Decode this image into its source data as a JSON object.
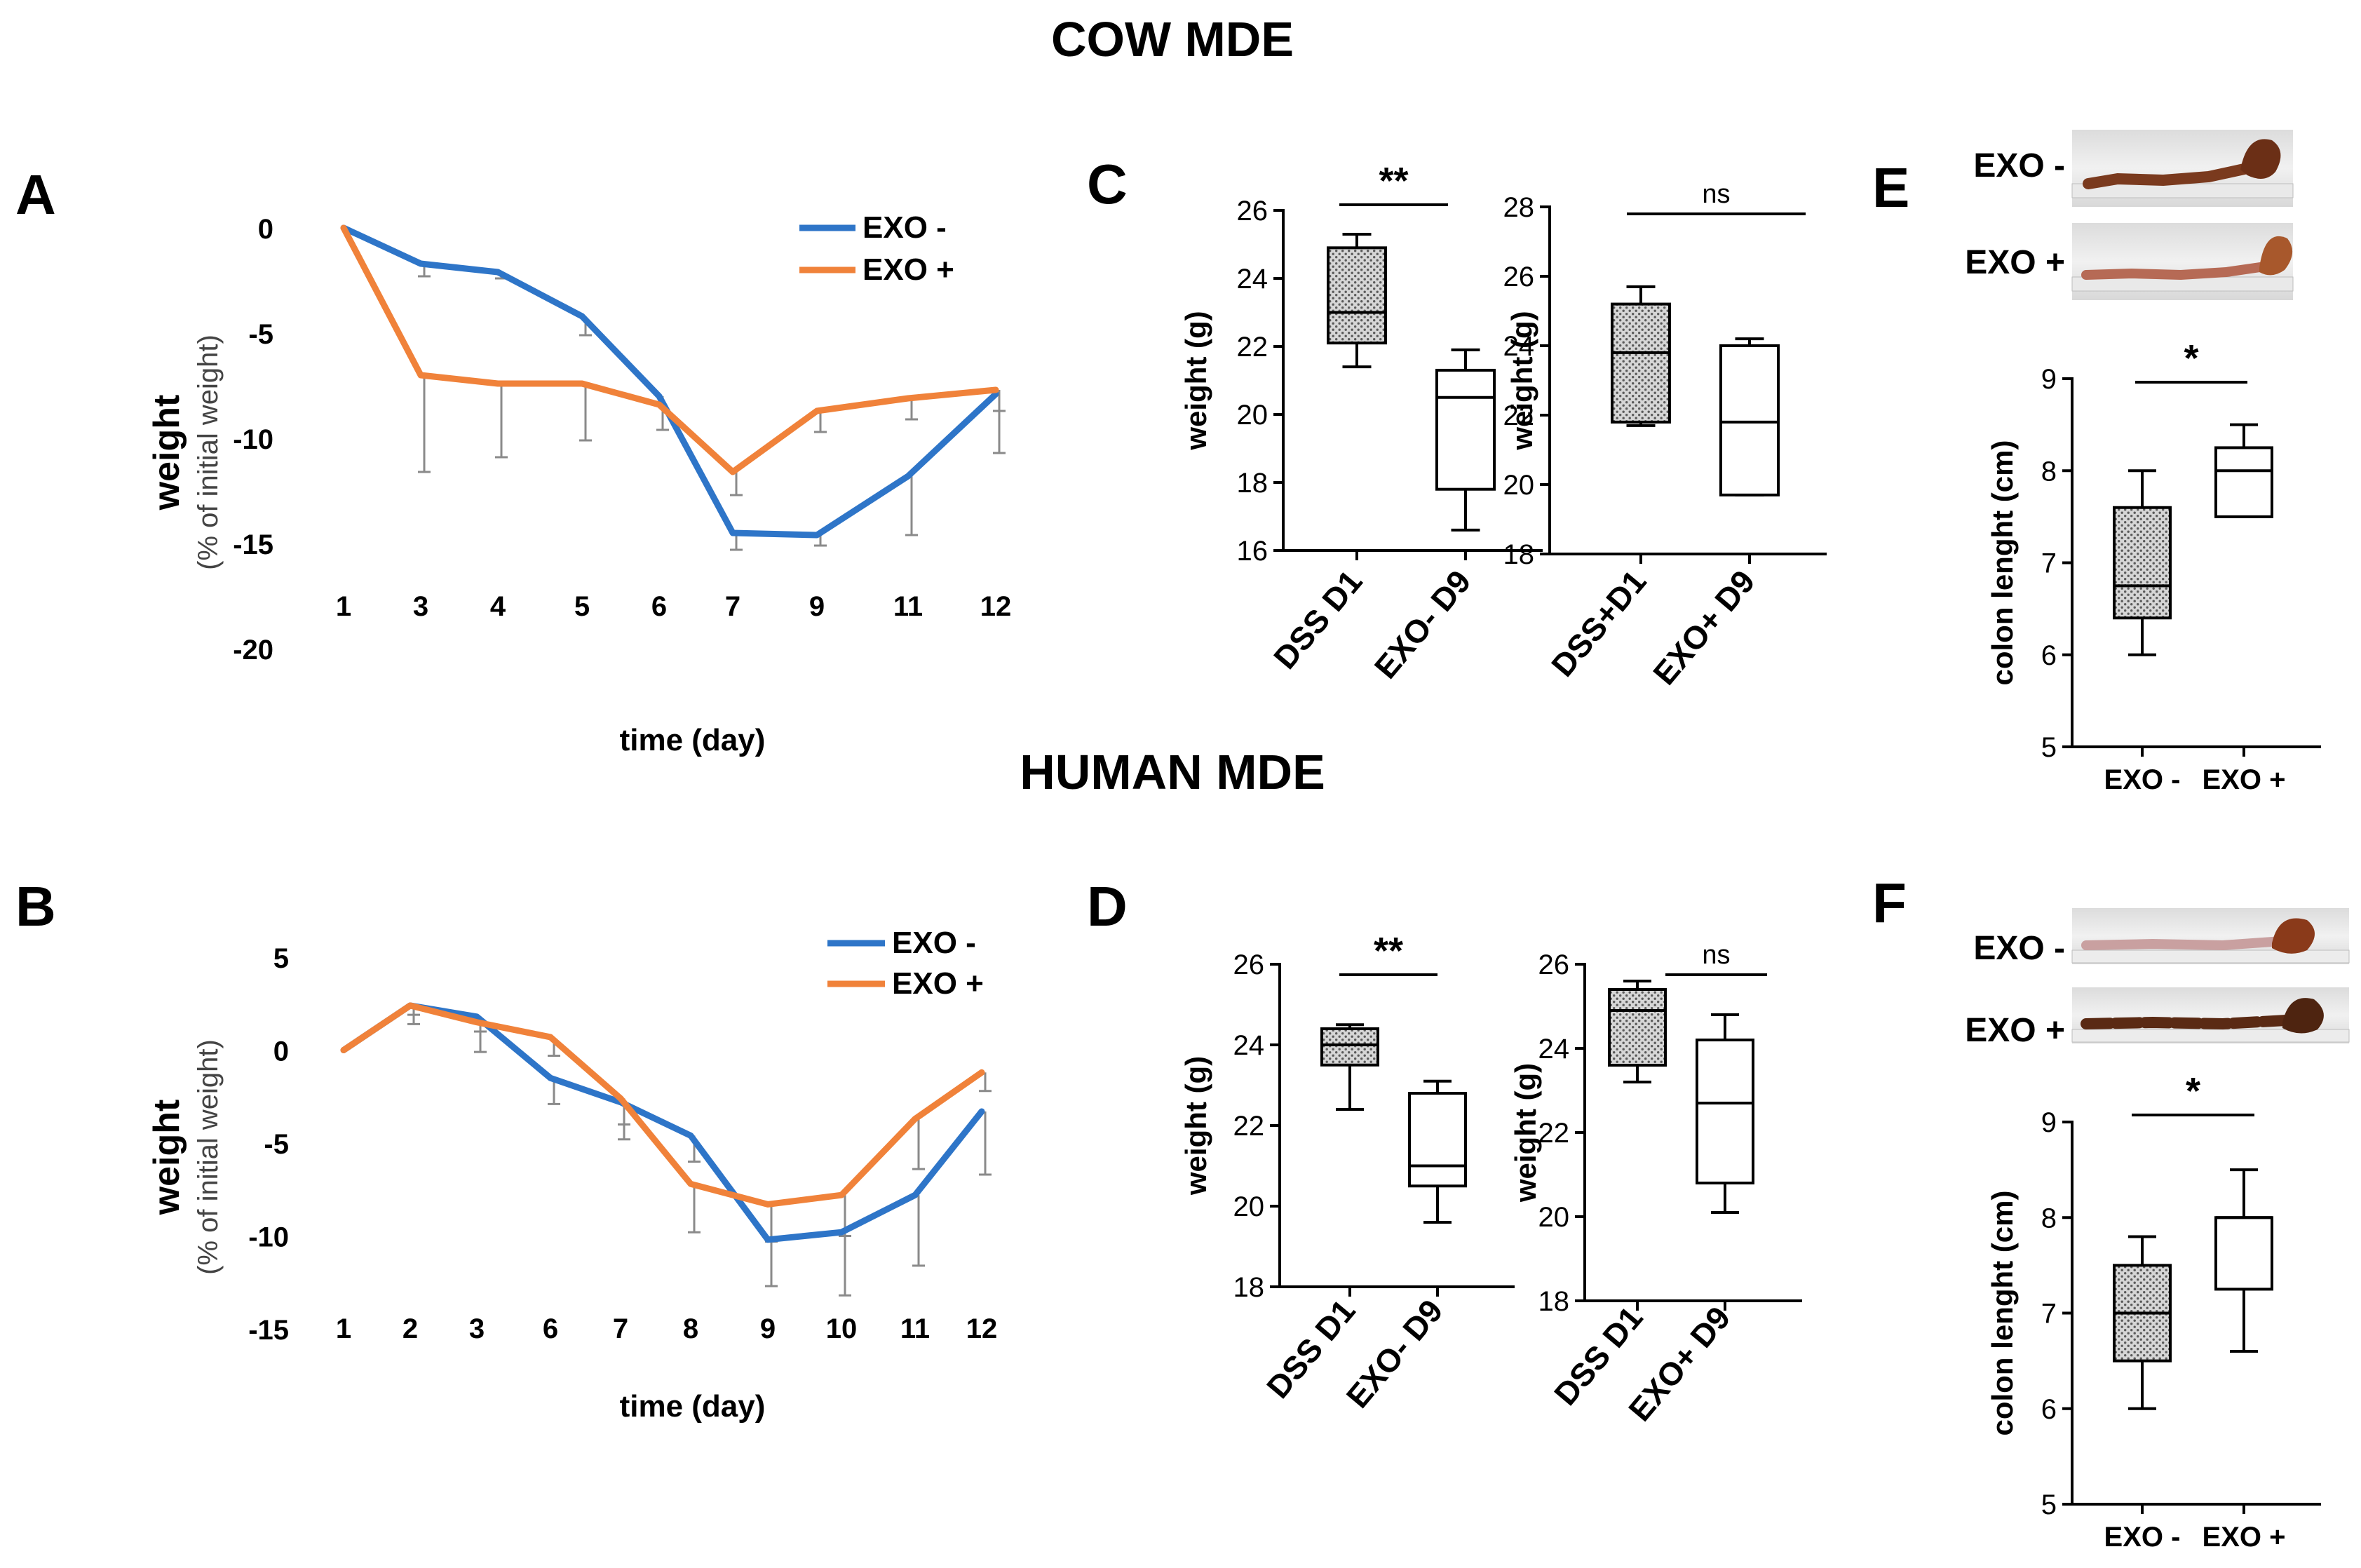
{
  "headings": {
    "cow": "COW MDE",
    "human": "HUMAN MDE"
  },
  "panels": {
    "A": "A",
    "B": "B",
    "C": "C",
    "D": "D",
    "E": "E",
    "F": "F"
  },
  "colors": {
    "exo_minus": "#2e75c8",
    "exo_plus": "#f0823a",
    "errorbar": "#8a8a8a",
    "axis": "#000000"
  },
  "chart_data": [
    {
      "id": "A",
      "type": "line",
      "title": "",
      "categories": [
        "1",
        "3",
        "4",
        "5",
        "6",
        "7",
        "9",
        "11",
        "12"
      ],
      "ylim": [
        -20,
        0
      ],
      "yticks": [
        "0",
        "-5",
        "-10",
        "-15",
        "-20"
      ],
      "ylabel": "weight",
      "ylabel_sub": "(% of initial weight)",
      "xlabel": "time (day)",
      "series": [
        {
          "name": "EXO -",
          "color": "#2e75c8",
          "values": [
            0,
            -1.7,
            -2.1,
            -4.2,
            -8.0,
            -14.5,
            -14.6,
            -11.8,
            -7.9
          ],
          "errors": [
            0,
            0.6,
            0.3,
            0.9,
            1.6,
            0.8,
            0.5,
            2.8,
            2.8
          ]
        },
        {
          "name": "EXO +",
          "color": "#f0823a",
          "values": [
            0,
            -7.0,
            -7.4,
            -7.4,
            -8.4,
            -11.6,
            -8.7,
            -8.1,
            -7.7
          ],
          "errors": [
            0,
            4.6,
            3.5,
            2.7,
            1.2,
            1.1,
            1.0,
            1.0,
            1.0
          ]
        }
      ]
    },
    {
      "id": "B",
      "type": "line",
      "title": "",
      "categories": [
        "1",
        "2",
        "3",
        "6",
        "7",
        "8",
        "9",
        "10",
        "11",
        "12"
      ],
      "ylim": [
        -15,
        5
      ],
      "yticks": [
        "5",
        "0",
        "-5",
        "-10",
        "-15"
      ],
      "ylabel": "weight",
      "ylabel_sub": "(% of initial weight)",
      "xlabel": "time (day)",
      "series": [
        {
          "name": "EXO -",
          "color": "#2e75c8",
          "values": [
            0,
            2.4,
            1.8,
            -1.5,
            -2.8,
            -4.6,
            -10.2,
            -9.8,
            -7.8,
            -3.3
          ],
          "errors": [
            0,
            0.5,
            0.8,
            1.4,
            1.2,
            1.4,
            2.5,
            3.4,
            3.8,
            3.4
          ]
        },
        {
          "name": "EXO +",
          "color": "#f0823a",
          "values": [
            0,
            2.4,
            1.5,
            0.7,
            -2.6,
            -7.2,
            -8.3,
            -7.8,
            -3.7,
            -1.2
          ],
          "errors": [
            0,
            1.0,
            1.6,
            1.0,
            2.2,
            2.6,
            2.0,
            2.2,
            2.7,
            1.0
          ]
        }
      ]
    },
    {
      "id": "C1",
      "type": "box",
      "ylabel": "weight (g)",
      "ylim": [
        16,
        26
      ],
      "yticks": [
        "16",
        "18",
        "20",
        "22",
        "24",
        "26"
      ],
      "significance": "**",
      "boxes": [
        {
          "label": "DSS D1",
          "whisker_min": 21.4,
          "q1": 22.1,
          "median": 23.0,
          "q3": 24.9,
          "whisker_max": 25.3,
          "fill": "dotted"
        },
        {
          "label": "EXO- D9",
          "whisker_min": 16.6,
          "q1": 17.8,
          "median": 20.5,
          "q3": 21.3,
          "whisker_max": 21.9,
          "fill": "open"
        }
      ]
    },
    {
      "id": "C2",
      "type": "box",
      "ylabel": "weight (g)",
      "ylim": [
        18,
        28
      ],
      "yticks": [
        "18",
        "20",
        "22",
        "24",
        "26",
        "28"
      ],
      "significance": "ns",
      "boxes": [
        {
          "label": "DSS+D1",
          "whisker_min": 21.7,
          "q1": 21.8,
          "median": 23.8,
          "q3": 25.2,
          "whisker_max": 25.7,
          "fill": "dotted"
        },
        {
          "label": "EXO+ D9",
          "whisker_min": 19.7,
          "q1": 19.7,
          "median": 21.8,
          "q3": 24.0,
          "whisker_max": 24.2,
          "fill": "open"
        }
      ]
    },
    {
      "id": "D1",
      "type": "box",
      "ylabel": "weight (g)",
      "ylim": [
        18,
        26
      ],
      "yticks": [
        "18",
        "20",
        "22",
        "24",
        "26"
      ],
      "significance": "**",
      "boxes": [
        {
          "label": "DSS D1",
          "whisker_min": 22.4,
          "q1": 23.5,
          "median": 24.0,
          "q3": 24.4,
          "whisker_max": 24.5,
          "fill": "dotted"
        },
        {
          "label": "EXO- D9",
          "whisker_min": 19.6,
          "q1": 20.5,
          "median": 21.0,
          "q3": 22.8,
          "whisker_max": 23.1,
          "fill": "open"
        }
      ]
    },
    {
      "id": "D2",
      "type": "box",
      "ylabel": "weight (g)",
      "ylim": [
        18,
        26
      ],
      "yticks": [
        "18",
        "20",
        "22",
        "24",
        "26"
      ],
      "significance": "ns",
      "boxes": [
        {
          "label": "DSS D1",
          "whisker_min": 23.2,
          "q1": 23.6,
          "median": 24.9,
          "q3": 25.4,
          "whisker_max": 25.6,
          "fill": "dotted"
        },
        {
          "label": "EXO+ D9",
          "whisker_min": 20.1,
          "q1": 20.8,
          "median": 22.7,
          "q3": 24.2,
          "whisker_max": 24.8,
          "fill": "open"
        }
      ]
    },
    {
      "id": "E",
      "type": "box",
      "ylabel": "colon lenght  (cm)",
      "ylim": [
        5,
        9
      ],
      "yticks": [
        "5",
        "6",
        "7",
        "8",
        "9"
      ],
      "significance": "*",
      "boxes": [
        {
          "label": "EXO -",
          "whisker_min": 6.0,
          "q1": 6.4,
          "median": 6.75,
          "q3": 7.6,
          "whisker_max": 8.0,
          "fill": "dotted"
        },
        {
          "label": "EXO +",
          "whisker_min": 7.5,
          "q1": 7.5,
          "median": 8.0,
          "q3": 8.25,
          "whisker_max": 8.5,
          "fill": "open"
        }
      ]
    },
    {
      "id": "F",
      "type": "box",
      "ylabel": "colon lenght  (cm)",
      "ylim": [
        5,
        9
      ],
      "yticks": [
        "5",
        "6",
        "7",
        "8",
        "9"
      ],
      "significance": "*",
      "boxes": [
        {
          "label": "EXO -",
          "whisker_min": 6.0,
          "q1": 6.5,
          "median": 7.0,
          "q3": 7.5,
          "whisker_max": 7.8,
          "fill": "dotted"
        },
        {
          "label": "EXO +",
          "whisker_min": 6.6,
          "q1": 7.25,
          "median": 8.0,
          "q3": 8.0,
          "whisker_max": 8.5,
          "fill": "open"
        }
      ]
    }
  ],
  "photos": {
    "E": {
      "top_label": "EXO -",
      "bottom_label": "EXO +"
    },
    "F": {
      "top_label": "EXO -",
      "bottom_label": "EXO +"
    }
  }
}
